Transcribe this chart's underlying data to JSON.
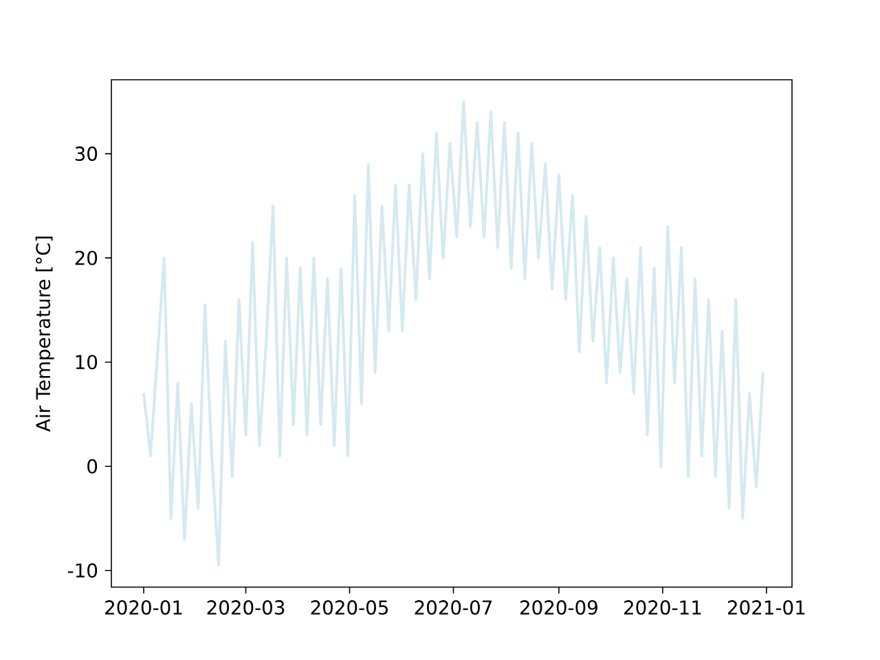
{
  "chart_data": {
    "type": "line",
    "ylabel": "Air Temperature [°C]",
    "x": [
      "2020-01-01",
      "2020-01-05",
      "2020-01-09",
      "2020-01-13",
      "2020-01-17",
      "2020-01-21",
      "2020-01-25",
      "2020-01-29",
      "2020-02-02",
      "2020-02-06",
      "2020-02-10",
      "2020-02-14",
      "2020-02-18",
      "2020-02-22",
      "2020-02-26",
      "2020-03-01",
      "2020-03-05",
      "2020-03-09",
      "2020-03-13",
      "2020-03-17",
      "2020-03-21",
      "2020-03-25",
      "2020-03-29",
      "2020-04-02",
      "2020-04-06",
      "2020-04-10",
      "2020-04-14",
      "2020-04-18",
      "2020-04-22",
      "2020-04-26",
      "2020-04-30",
      "2020-05-04",
      "2020-05-08",
      "2020-05-12",
      "2020-05-16",
      "2020-05-20",
      "2020-05-24",
      "2020-05-28",
      "2020-06-01",
      "2020-06-05",
      "2020-06-09",
      "2020-06-13",
      "2020-06-17",
      "2020-06-21",
      "2020-06-25",
      "2020-06-29",
      "2020-07-03",
      "2020-07-07",
      "2020-07-11",
      "2020-07-15",
      "2020-07-19",
      "2020-07-23",
      "2020-07-27",
      "2020-07-31",
      "2020-08-04",
      "2020-08-08",
      "2020-08-12",
      "2020-08-16",
      "2020-08-20",
      "2020-08-24",
      "2020-08-28",
      "2020-09-01",
      "2020-09-05",
      "2020-09-09",
      "2020-09-13",
      "2020-09-17",
      "2020-09-21",
      "2020-09-25",
      "2020-09-29",
      "2020-10-03",
      "2020-10-07",
      "2020-10-11",
      "2020-10-15",
      "2020-10-19",
      "2020-10-23",
      "2020-10-27",
      "2020-10-31",
      "2020-11-04",
      "2020-11-08",
      "2020-11-12",
      "2020-11-16",
      "2020-11-20",
      "2020-11-24",
      "2020-11-28",
      "2020-12-02",
      "2020-12-06",
      "2020-12-10",
      "2020-12-14",
      "2020-12-18",
      "2020-12-22",
      "2020-12-26",
      "2020-12-30"
    ],
    "series": [
      {
        "color": "#d4eaf0",
        "values": [
          7,
          1,
          10.5,
          20,
          -5,
          8,
          -7,
          6,
          -4,
          15.5,
          1,
          -9.5,
          12,
          -1,
          16,
          3,
          21.5,
          2,
          12,
          25,
          1,
          20,
          4,
          19,
          3,
          20,
          4,
          18,
          2,
          19,
          1,
          26,
          6,
          29,
          9,
          25,
          13,
          27,
          13,
          27,
          16,
          30,
          18,
          32,
          20,
          31,
          22,
          35,
          23,
          33,
          22,
          34,
          21,
          33,
          19,
          32,
          18,
          31,
          20,
          29,
          17,
          28,
          16,
          26,
          11,
          24,
          12,
          21,
          8,
          20,
          9,
          18,
          7,
          21,
          3,
          19,
          0,
          23,
          8,
          21,
          -1,
          18,
          1,
          16,
          -1,
          13,
          -4,
          16,
          -5,
          7,
          -2,
          9
        ]
      }
    ],
    "xlim": [
      "2019-12-13",
      "2021-01-16"
    ],
    "xticks": [
      "2020-01",
      "2020-03",
      "2020-05",
      "2020-07",
      "2020-09",
      "2020-11",
      "2021-01"
    ],
    "ylim": [
      -11.6,
      37.1
    ],
    "yticks": [
      -10,
      0,
      10,
      20,
      30
    ],
    "grid": false,
    "marker": "none",
    "line_style": "solid"
  }
}
